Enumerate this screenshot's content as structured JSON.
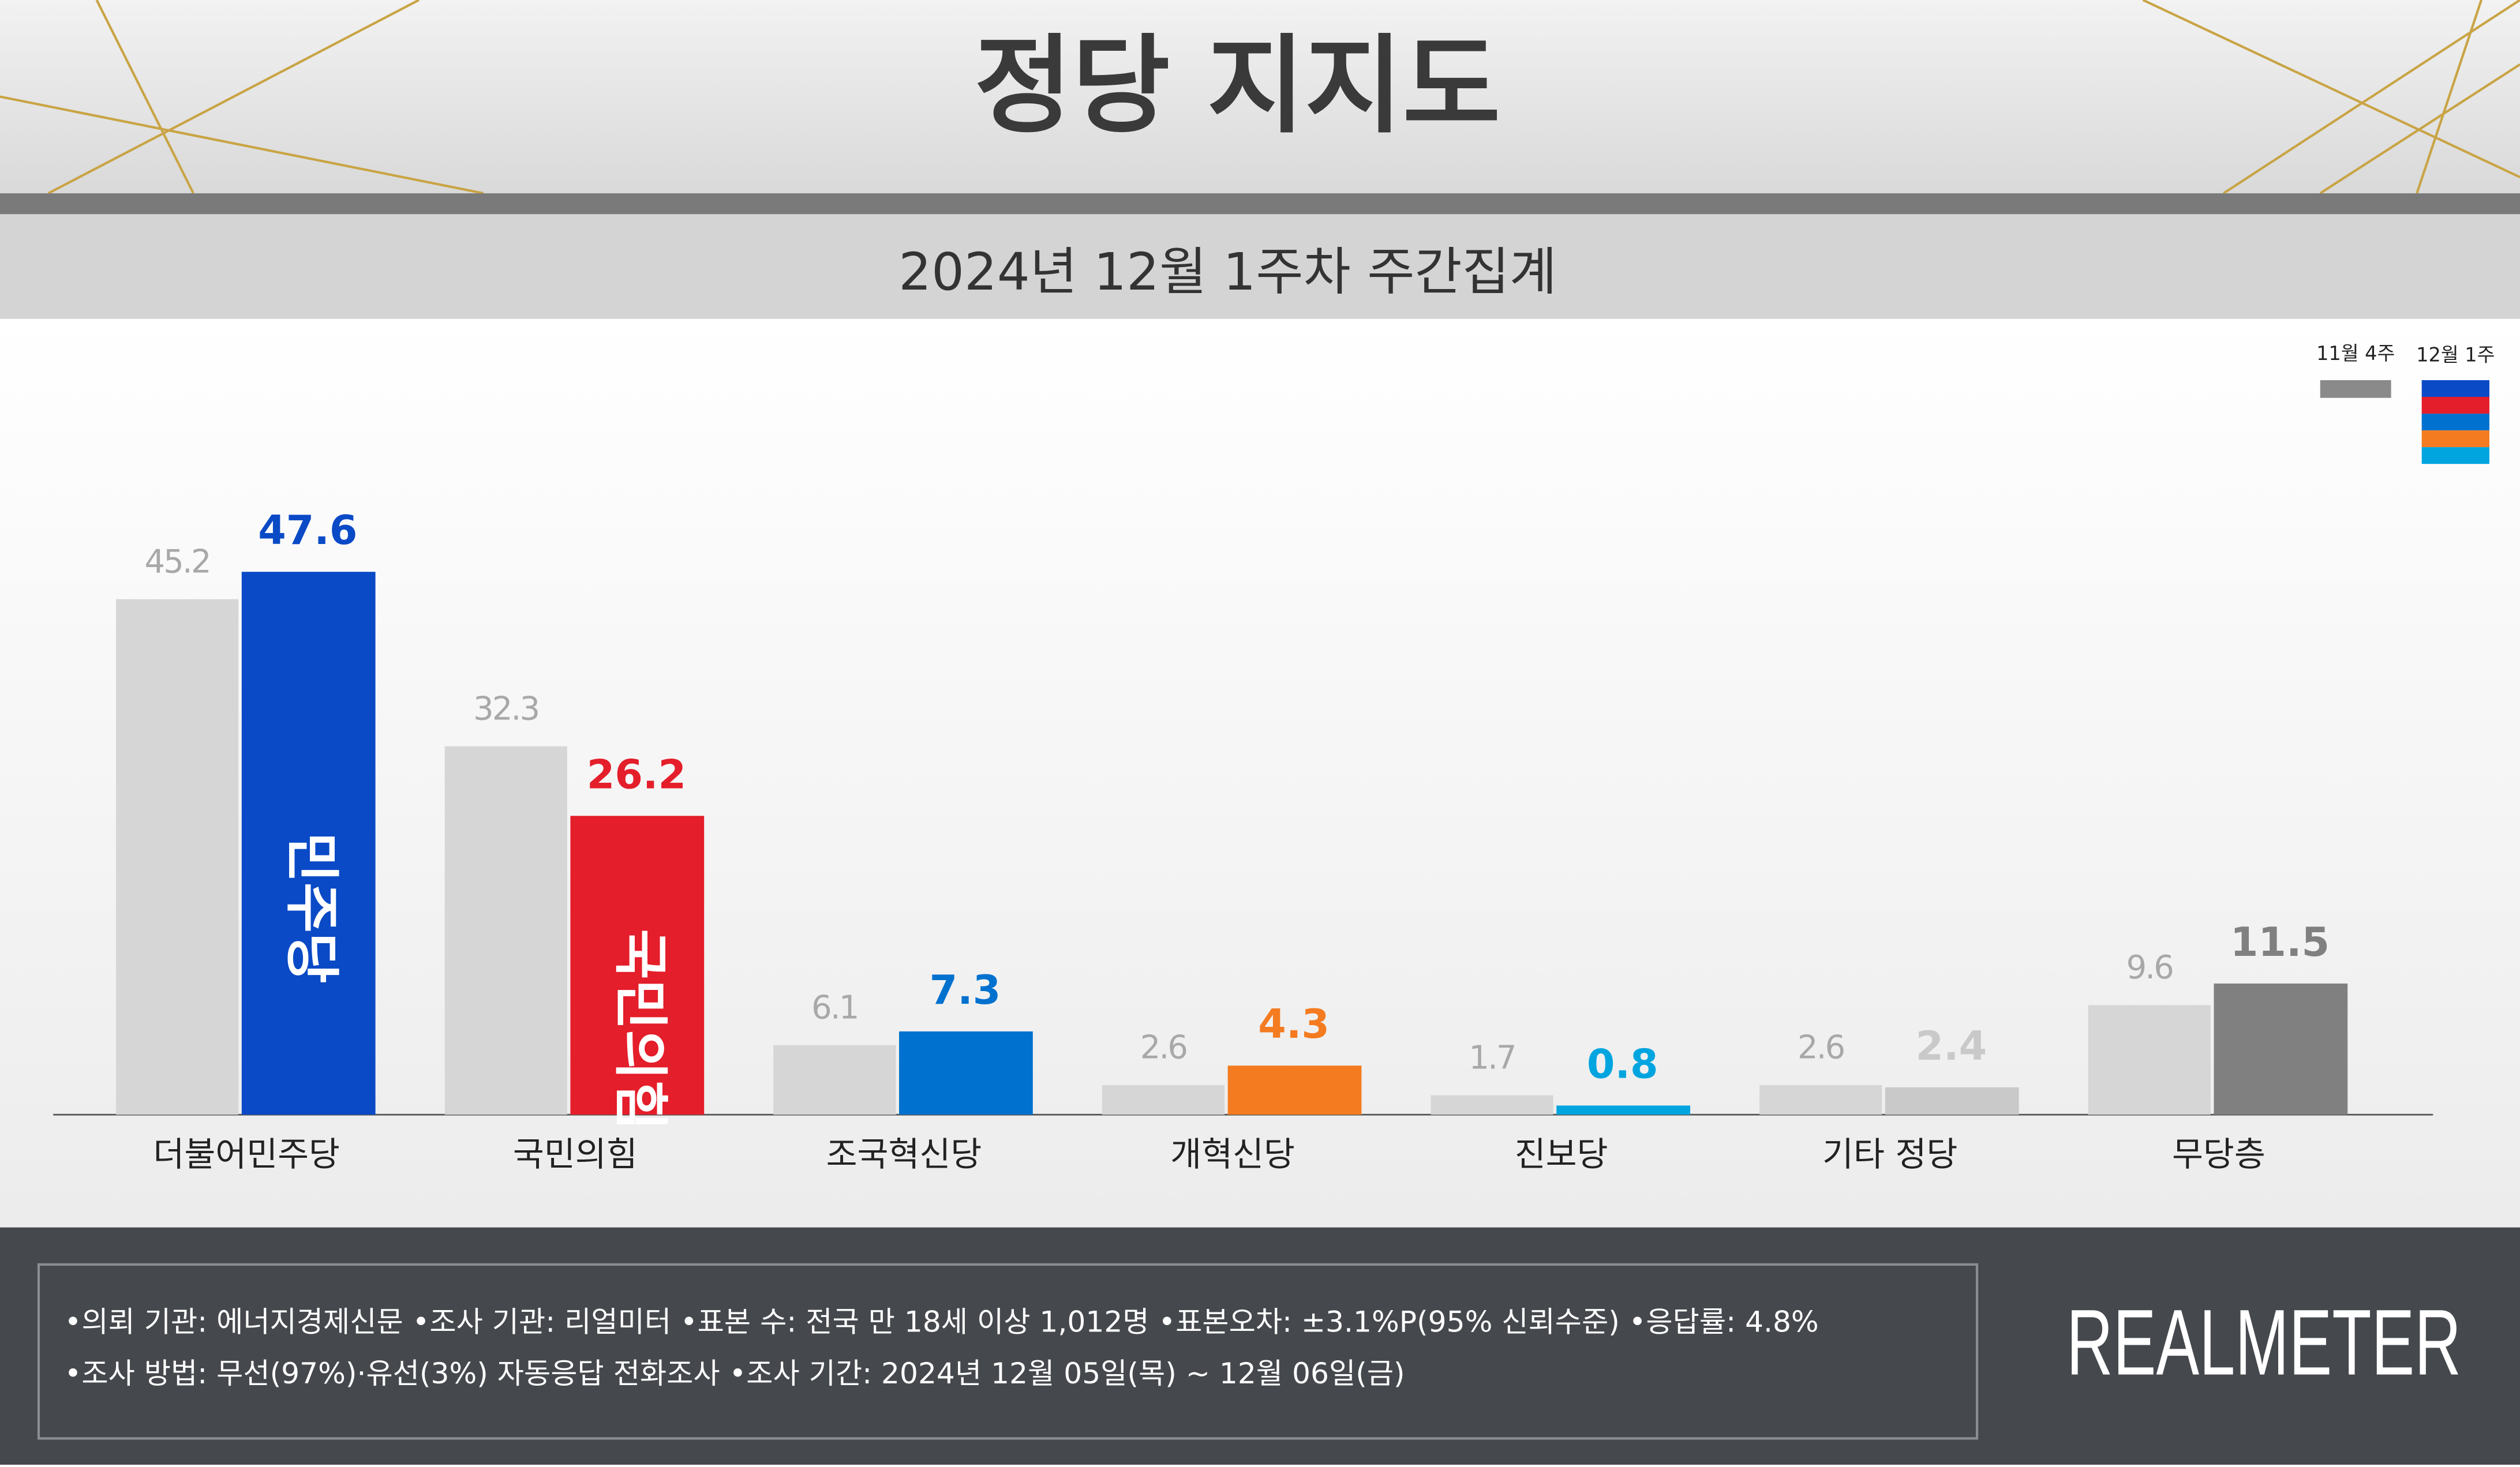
{
  "header": {
    "title": "정당 지지도",
    "subtitle": "2024년 12월 1주차 주간집계"
  },
  "chart_data": {
    "type": "bar",
    "categories": [
      "더불어민주당",
      "국민의힘",
      "조국혁신당",
      "개혁신당",
      "진보당",
      "기타 정당",
      "무당층"
    ],
    "series": [
      {
        "name": "11월 4주",
        "color": "#d6d6d6",
        "legend_color": "#8a8a8a",
        "values": [
          45.2,
          32.3,
          6.1,
          2.6,
          1.7,
          2.6,
          9.6
        ]
      },
      {
        "name": "12월 1주",
        "colors": [
          "#0a4ac6",
          "#e41e2a",
          "#0071ce",
          "#f47b20",
          "#00a5e0",
          "#c9c9c9",
          "#808080"
        ],
        "values": [
          47.6,
          26.2,
          7.3,
          4.3,
          0.8,
          2.4,
          11.5
        ]
      }
    ],
    "bar_logos": [
      "민주당",
      "국민의힘"
    ]
  },
  "footer": {
    "lines": [
      "•의뢰 기관: 에너지경제신문  •조사 기관: 리얼미터 •표본 수: 전국 만 18세 이상 1,012명 •표본오차: ±3.1%P(95% 신뢰수준) •응답률: 4.8%",
      "•조사 방법: 무선(97%)·유선(3%) 자동응답 전화조사 •조사 기간: 2024년 12월 05일(목) ~ 12월 06일(금)"
    ],
    "brand": "REALMETER"
  }
}
